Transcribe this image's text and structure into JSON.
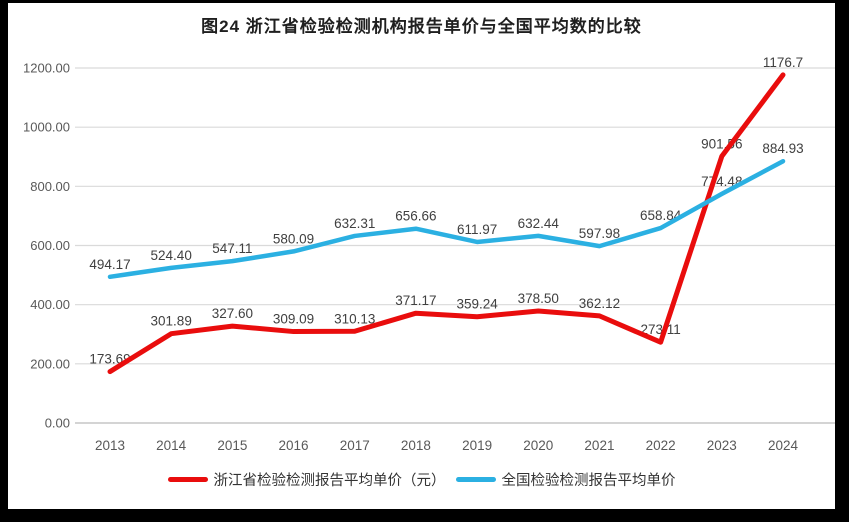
{
  "frame": {
    "border_color": "#000000",
    "panel_background": "#ffffff"
  },
  "chart_data": {
    "type": "line",
    "title": "图24  浙江省检验检测机构报告单价与全国平均数的比较",
    "categories": [
      "2013",
      "2014",
      "2015",
      "2016",
      "2017",
      "2018",
      "2019",
      "2020",
      "2021",
      "2022",
      "2023",
      "2024"
    ],
    "series": [
      {
        "name": "浙江省检验检测报告平均单价（元）",
        "color": "#e90d0d",
        "values": [
          173.69,
          301.89,
          327.6,
          309.09,
          310.13,
          371.17,
          359.24,
          378.5,
          362.12,
          273.11,
          901.56,
          1176.7
        ],
        "labels": [
          "173.69",
          "301.89",
          "327.60",
          "309.09",
          "310.13",
          "371.17",
          "359.24",
          "378.50",
          "362.12",
          "273.11",
          "901.56",
          "1176.7"
        ]
      },
      {
        "name": "全国检验检测报告平均单价",
        "color": "#2bb0e2",
        "values": [
          494.17,
          524.4,
          547.11,
          580.09,
          632.31,
          656.66,
          611.97,
          632.44,
          597.98,
          658.84,
          774.48,
          884.93
        ],
        "labels": [
          "494.17",
          "524.40",
          "547.11",
          "580.09",
          "632.31",
          "656.66",
          "611.97",
          "632.44",
          "597.98",
          "658.84",
          "774.48",
          "884.93"
        ]
      }
    ],
    "ylim": [
      0,
      1200
    ],
    "ytick_step": 200,
    "ytick_labels": [
      "0.00",
      "200.00",
      "400.00",
      "600.00",
      "800.00",
      "1000.00",
      "1200.00"
    ],
    "grid": true,
    "legend_position": "bottom",
    "colors": {
      "grid": "#dadada",
      "axis": "#c6c6c6",
      "tick_label": "#595959",
      "data_label": "#404040",
      "title": "#1f1f1f"
    }
  }
}
